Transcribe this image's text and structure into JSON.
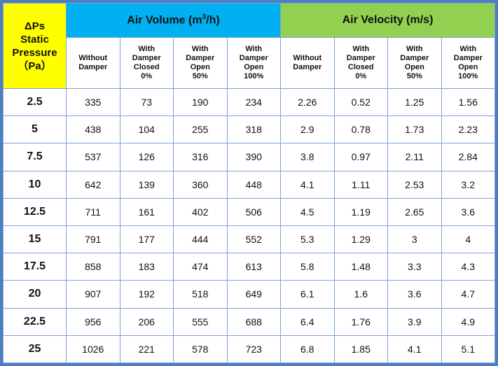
{
  "header": {
    "corner": [
      "ΔPs",
      "Static",
      "Pressure",
      "（Pa）"
    ],
    "group_volume": {
      "label_pre": "Air Volume (m",
      "sup": "3",
      "label_post": "/h)"
    },
    "group_velocity": "Air Velocity (m/s)",
    "colors": {
      "corner": "#ffff00",
      "volume": "#00b0f0",
      "velocity": "#92d050",
      "border": "#4f7ec0"
    },
    "subcolumns": [
      [
        "Without",
        "Damper"
      ],
      [
        "With",
        "Damper",
        "Closed",
        "0%"
      ],
      [
        "With",
        "Damper",
        "Open",
        "50%"
      ],
      [
        "With",
        "Damper",
        "Open",
        "100%"
      ],
      [
        "Without",
        "Damper"
      ],
      [
        "With",
        "Damper",
        "Closed",
        "0%"
      ],
      [
        "With",
        "Damper",
        "Open",
        "50%"
      ],
      [
        "With",
        "Damper",
        "Open",
        "100%"
      ]
    ]
  },
  "rows": [
    [
      "2.5",
      "335",
      "73",
      "190",
      "234",
      "2.26",
      "0.52",
      "1.25",
      "1.56"
    ],
    [
      "5",
      "438",
      "104",
      "255",
      "318",
      "2.9",
      "0.78",
      "1.73",
      "2.23"
    ],
    [
      "7.5",
      "537",
      "126",
      "316",
      "390",
      "3.8",
      "0.97",
      "2.11",
      "2.84"
    ],
    [
      "10",
      "642",
      "139",
      "360",
      "448",
      "4.1",
      "1.11",
      "2.53",
      "3.2"
    ],
    [
      "12.5",
      "711",
      "161",
      "402",
      "506",
      "4.5",
      "1.19",
      "2.65",
      "3.6"
    ],
    [
      "15",
      "791",
      "177",
      "444",
      "552",
      "5.3",
      "1.29",
      "3",
      "4"
    ],
    [
      "17.5",
      "858",
      "183",
      "474",
      "613",
      "5.8",
      "1.48",
      "3.3",
      "4.3"
    ],
    [
      "20",
      "907",
      "192",
      "518",
      "649",
      "6.1",
      "1.6",
      "3.6",
      "4.7"
    ],
    [
      "22.5",
      "956",
      "206",
      "555",
      "688",
      "6.4",
      "1.76",
      "3.9",
      "4.9"
    ],
    [
      "25",
      "1026",
      "221",
      "578",
      "723",
      "6.8",
      "1.85",
      "4.1",
      "5.1"
    ]
  ]
}
